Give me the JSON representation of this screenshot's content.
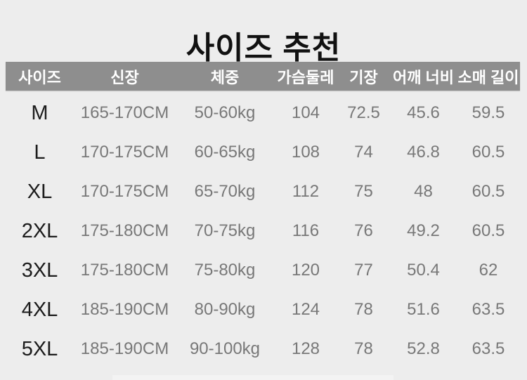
{
  "title": "사이즈 추천",
  "colors": {
    "page_bg": "#ededed",
    "header_bg": "#8e8e8e",
    "header_text": "#ffffff",
    "size_label_text": "#1c1c1c",
    "value_text": "#787878",
    "title_text": "#111111"
  },
  "chart_data": {
    "type": "table",
    "title": "사이즈 추천",
    "columns": [
      "사이즈",
      "신장",
      "체중",
      "가슴둘레",
      "기장",
      "어깨 너비",
      "소매 길이"
    ],
    "rows": [
      [
        "M",
        "165-170CM",
        "50-60kg",
        "104",
        "72.5",
        "45.6",
        "59.5"
      ],
      [
        "L",
        "170-175CM",
        "60-65kg",
        "108",
        "74",
        "46.8",
        "60.5"
      ],
      [
        "XL",
        "170-175CM",
        "65-70kg",
        "112",
        "75",
        "48",
        "60.5"
      ],
      [
        "2XL",
        "175-180CM",
        "70-75kg",
        "116",
        "76",
        "49.2",
        "60.5"
      ],
      [
        "3XL",
        "175-180CM",
        "75-80kg",
        "120",
        "77",
        "50.4",
        "62"
      ],
      [
        "4XL",
        "185-190CM",
        "80-90kg",
        "124",
        "78",
        "51.6",
        "63.5"
      ],
      [
        "5XL",
        "185-190CM",
        "90-100kg",
        "128",
        "78",
        "52.8",
        "63.5"
      ]
    ],
    "layout": {
      "header_row": true,
      "grid": false,
      "row_count": 7,
      "column_count": 7
    }
  }
}
